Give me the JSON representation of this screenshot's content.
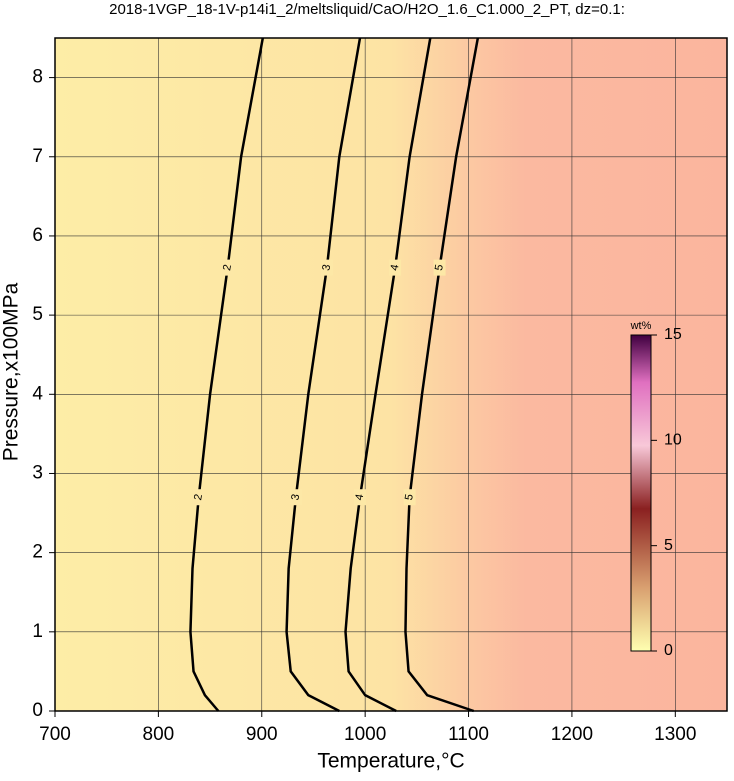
{
  "chart_data": {
    "type": "contour",
    "title": "2018-1VGP_18-1V-p14i1_2/meltsliquid/CaO/H2O_1.6_C1.000_2_PT, dz=0.1:",
    "x_label": "Temperature,°C",
    "y_label": "Pressure,x100MPa",
    "xlim": [
      700,
      1350
    ],
    "xticks": [
      700,
      800,
      900,
      1000,
      1100,
      1200,
      1300
    ],
    "ylim": [
      0,
      8.5
    ],
    "yticks": [
      0,
      1,
      2,
      3,
      4,
      5,
      6,
      7,
      8
    ],
    "grid": true,
    "contours": [
      {
        "level": 2,
        "y": [
          8.5,
          7,
          5.6,
          4,
          2.7,
          1.8,
          1,
          0.5,
          0.2,
          0
        ],
        "x": [
          901,
          880,
          867,
          850,
          839,
          833,
          831,
          834,
          845,
          858
        ]
      },
      {
        "level": 3,
        "y": [
          8.5,
          7,
          5.6,
          4,
          2.7,
          1.8,
          1,
          0.5,
          0.2,
          0
        ],
        "x": [
          995,
          975,
          963,
          945,
          933,
          926,
          924,
          928,
          945,
          975
        ]
      },
      {
        "level": 4,
        "y": [
          8.5,
          7,
          5.6,
          4,
          2.7,
          1.8,
          1,
          0.5,
          0.2,
          0
        ],
        "x": [
          1063,
          1043,
          1029,
          1010,
          995,
          986,
          981,
          984,
          1000,
          1030
        ]
      },
      {
        "level": 5,
        "y": [
          8.5,
          7,
          5.6,
          4,
          2.7,
          1.8,
          1,
          0.5,
          0.2,
          0
        ],
        "x": [
          1109,
          1088,
          1072,
          1055,
          1043,
          1040,
          1039,
          1042,
          1060,
          1105
        ]
      }
    ],
    "colorbar": {
      "label": "wt%",
      "lim": [
        0,
        15
      ],
      "ticks": [
        0,
        5,
        10,
        15
      ]
    }
  }
}
